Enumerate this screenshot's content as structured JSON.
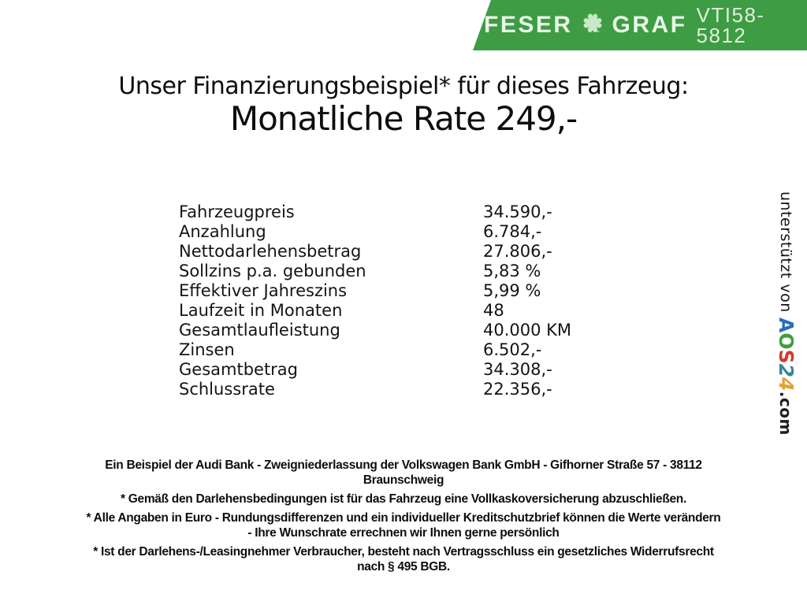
{
  "banner": {
    "brand_left": "FESER",
    "brand_right": "GRAF",
    "vehicle_id": "VTI58-5812",
    "bg_color": "#3e9c44",
    "text_color": "#e9f6e7",
    "clover_color": "#c9e9c6"
  },
  "header": {
    "title": "Unser Finanzierungsbeispiel* für dieses Fahrzeug:",
    "subtitle": "Monatliche Rate 249,-"
  },
  "financing_table": {
    "rows": [
      {
        "label": "Fahrzeugpreis",
        "value": "34.590,-"
      },
      {
        "label": "Anzahlung",
        "value": "6.784,-"
      },
      {
        "label": "Nettodarlehensbetrag",
        "value": "27.806,-"
      },
      {
        "label": "Sollzins p.a. gebunden",
        "value": "5,83 %"
      },
      {
        "label": "Effektiver Jahreszins",
        "value": "5,99 %"
      },
      {
        "label": "Laufzeit in Monaten",
        "value": "48"
      },
      {
        "label": "Gesamtlaufleistung",
        "value": "40.000 KM"
      },
      {
        "label": "Zinsen",
        "value": "6.502,-"
      },
      {
        "label": "Gesamtbetrag",
        "value": "34.308,-"
      },
      {
        "label": "Schlussrate",
        "value": "22.356,-"
      }
    ]
  },
  "sidebar": {
    "supported_by": "unterstützt von ",
    "logo_letters": [
      {
        "char": "A",
        "color": "#2b6db6"
      },
      {
        "char": "O",
        "color": "#3f9e3c"
      },
      {
        "char": "S",
        "color": "#d23a2c"
      },
      {
        "char": "2",
        "color": "#37839b",
        "italic": true
      },
      {
        "char": "4",
        "color": "#dfa437",
        "italic": true
      }
    ],
    "logo_suffix": ".com"
  },
  "footer": {
    "paragraphs": [
      {
        "lines": [
          "Ein Beispiel der Audi Bank - Zweigniederlassung der Volkswagen Bank GmbH - Gifhorner Straße 57 - 38112",
          "Braunschweig"
        ]
      },
      {
        "lines": [
          "* Gemäß den Darlehensbedingungen ist für das Fahrzeug eine Vollkaskoversicherung abzuschließen."
        ]
      },
      {
        "lines": [
          "* Alle Angaben in Euro - Rundungsdifferenzen und ein individueller Kreditschutzbrief können die Werte verändern",
          "- Ihre Wunschrate errechnen wir Ihnen gerne persönlich"
        ]
      },
      {
        "lines": [
          "* Ist der Darlehens-/Leasingnehmer Verbraucher, besteht nach Vertragsschluss ein gesetzliches Widerrufsrecht",
          "nach § 495 BGB."
        ]
      }
    ]
  }
}
